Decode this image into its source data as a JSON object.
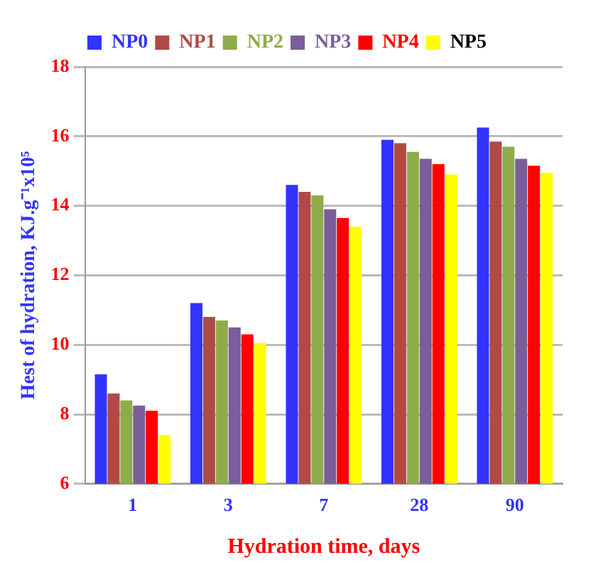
{
  "chart_data": {
    "type": "bar",
    "xlabel": "Hydration time, days",
    "ylabel": "Hest of hydration, KJ.g⁻¹x10⁵",
    "categories": [
      "1",
      "3",
      "7",
      "28",
      "90"
    ],
    "series": [
      {
        "name": "NP0",
        "color": "#3333ff",
        "values": [
          9.15,
          11.2,
          14.6,
          15.9,
          16.25
        ]
      },
      {
        "name": "NP1",
        "color": "#b04a46",
        "values": [
          8.6,
          10.8,
          14.4,
          15.8,
          15.85
        ]
      },
      {
        "name": "NP2",
        "color": "#8fac4a",
        "values": [
          8.4,
          10.7,
          14.3,
          15.55,
          15.7
        ]
      },
      {
        "name": "NP3",
        "color": "#7a5e9a",
        "values": [
          8.25,
          10.5,
          13.9,
          15.35,
          15.35
        ]
      },
      {
        "name": "NP4",
        "color": "#ff0000",
        "values": [
          8.1,
          10.3,
          13.65,
          15.2,
          15.15
        ]
      },
      {
        "name": "NP5",
        "color": "#ffff00",
        "values": [
          7.4,
          10.05,
          13.4,
          14.9,
          14.95
        ]
      }
    ],
    "ylim": [
      6,
      18
    ],
    "yticks": [
      6,
      8,
      10,
      12,
      14,
      16,
      18
    ],
    "grid": "y",
    "legend": "top"
  }
}
